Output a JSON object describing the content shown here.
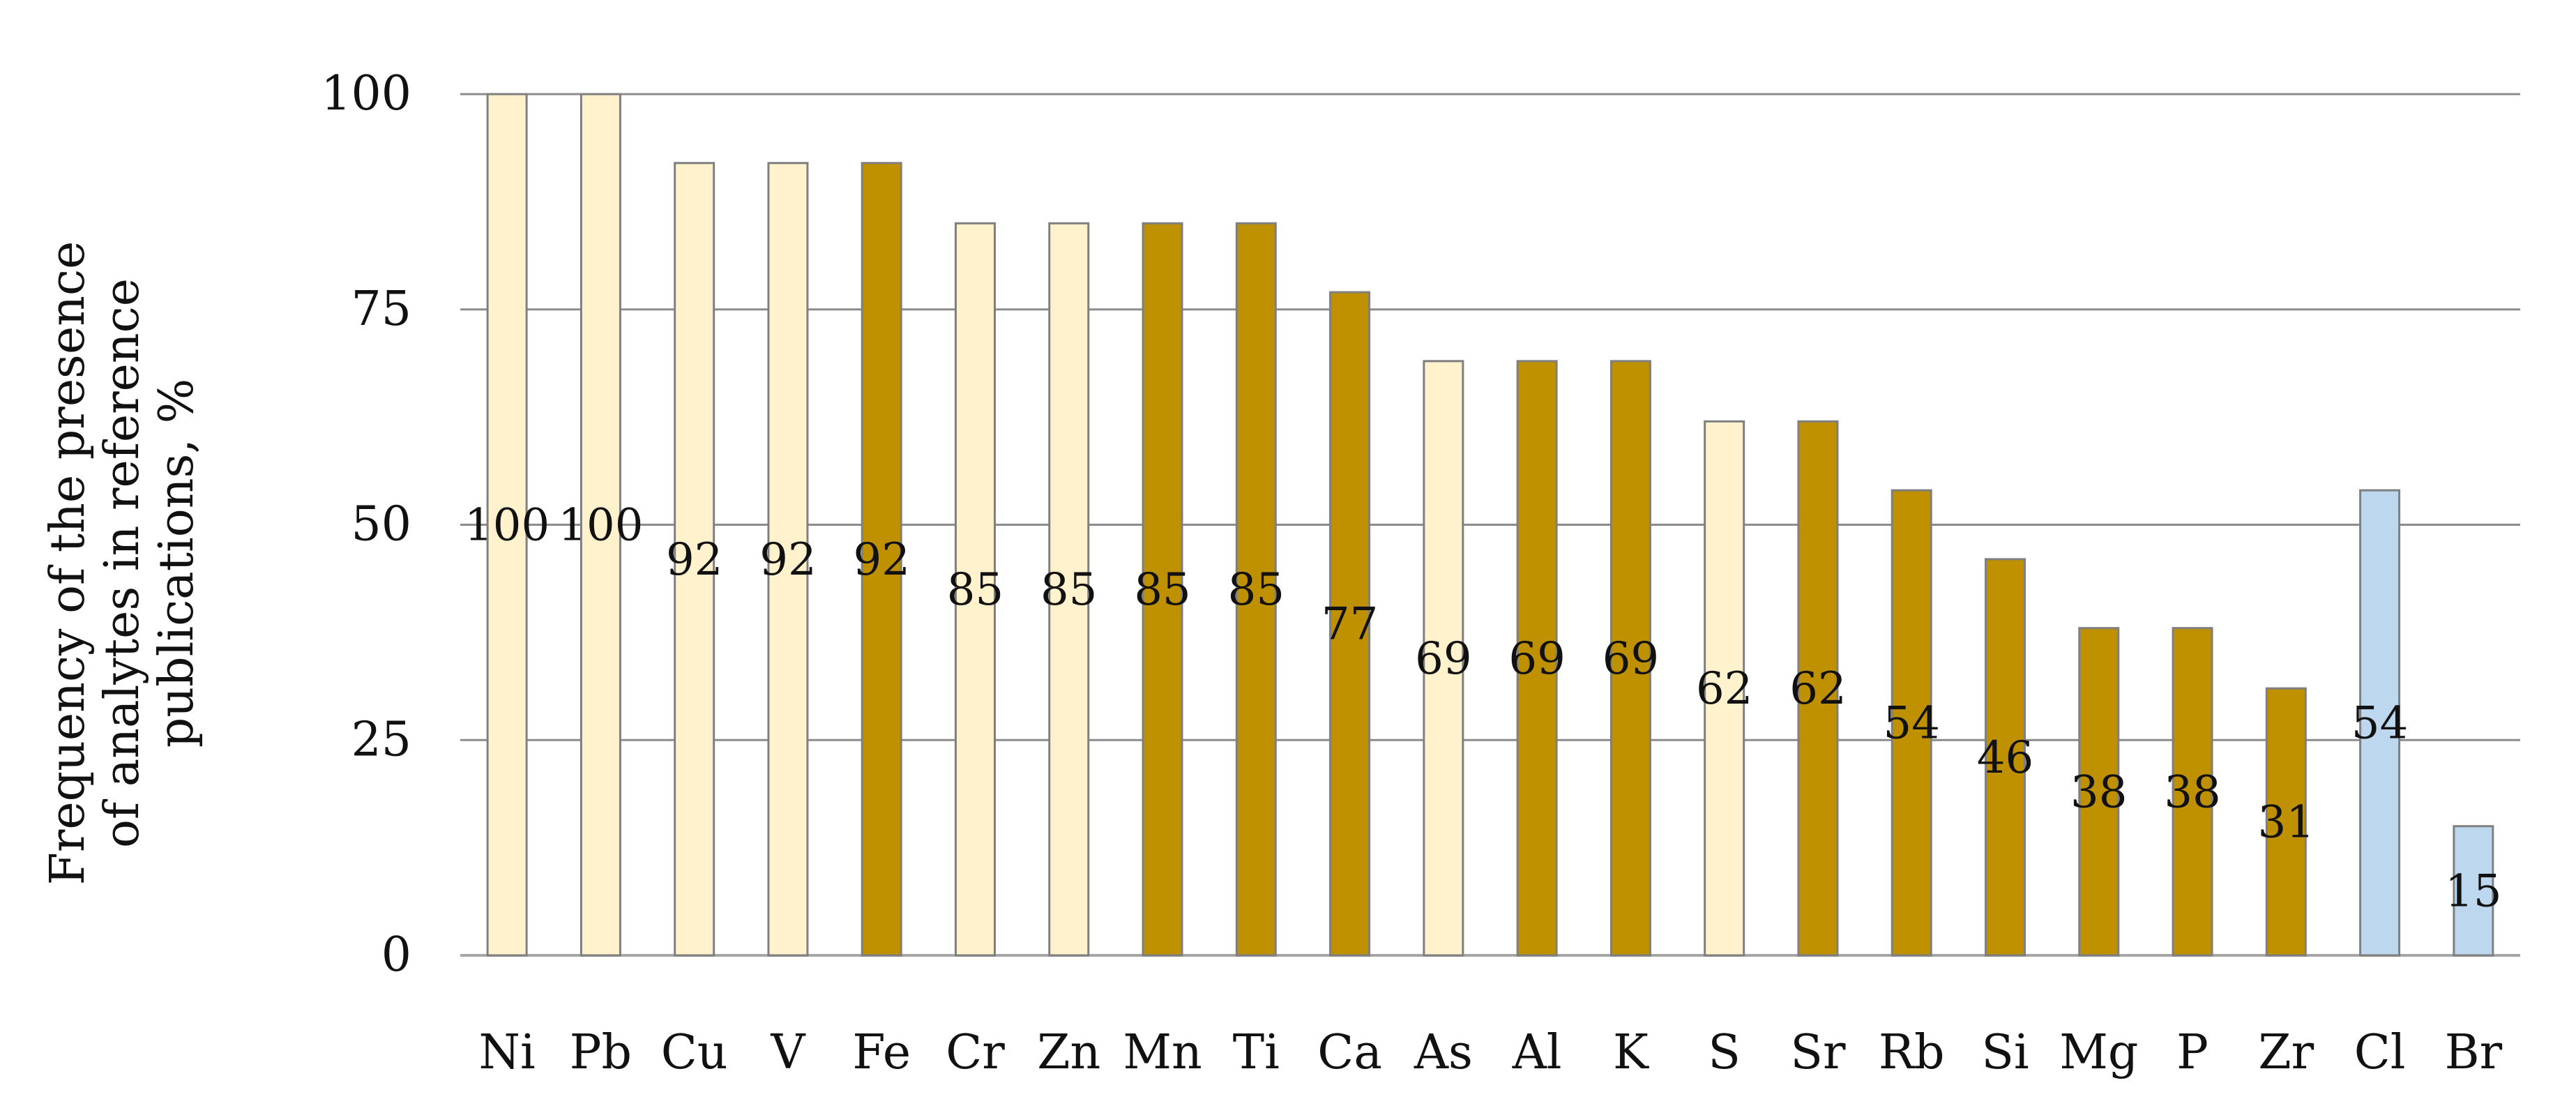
{
  "chart_data": {
    "type": "bar",
    "title": "",
    "xlabel": "",
    "ylabel": "Frequency of the presence of analytes in reference publications, %",
    "ylabel_lines": [
      "Frequency of the presence",
      "of analytes in reference",
      "publications, %"
    ],
    "ylim": [
      0,
      100
    ],
    "yticks": [
      0,
      25,
      50,
      75,
      100
    ],
    "grid": true,
    "legend": "none",
    "categories": [
      "Ni",
      "Pb",
      "Cu",
      "V",
      "Fe",
      "Cr",
      "Zn",
      "Mn",
      "Ti",
      "Ca",
      "As",
      "Al",
      "K",
      "S",
      "Sr",
      "Rb",
      "Si",
      "Mg",
      "P",
      "Zr",
      "Cl",
      "Br"
    ],
    "values": [
      100,
      100,
      92,
      92,
      92,
      85,
      85,
      85,
      85,
      77,
      69,
      69,
      69,
      62,
      62,
      54,
      46,
      38,
      38,
      31,
      54,
      15
    ],
    "data_labels": [
      "100",
      "100",
      "92",
      "92",
      "92",
      "85",
      "85",
      "85",
      "85",
      "77",
      "69",
      "69",
      "69",
      "62",
      "62",
      "54",
      "46",
      "38",
      "38",
      "31",
      "54",
      "15"
    ],
    "bar_groups": [
      "light",
      "light",
      "light",
      "light",
      "dark",
      "light",
      "light",
      "dark",
      "dark",
      "dark",
      "light",
      "dark",
      "dark",
      "light",
      "dark",
      "dark",
      "dark",
      "dark",
      "dark",
      "dark",
      "blue",
      "blue"
    ],
    "colors": {
      "light": "#fff2cc",
      "dark": "#bf9000",
      "blue": "#bdd7ee",
      "bar_edge": "#7f7f7f",
      "grid": "#8c8c8c",
      "axis": "#a6a6a6"
    }
  }
}
